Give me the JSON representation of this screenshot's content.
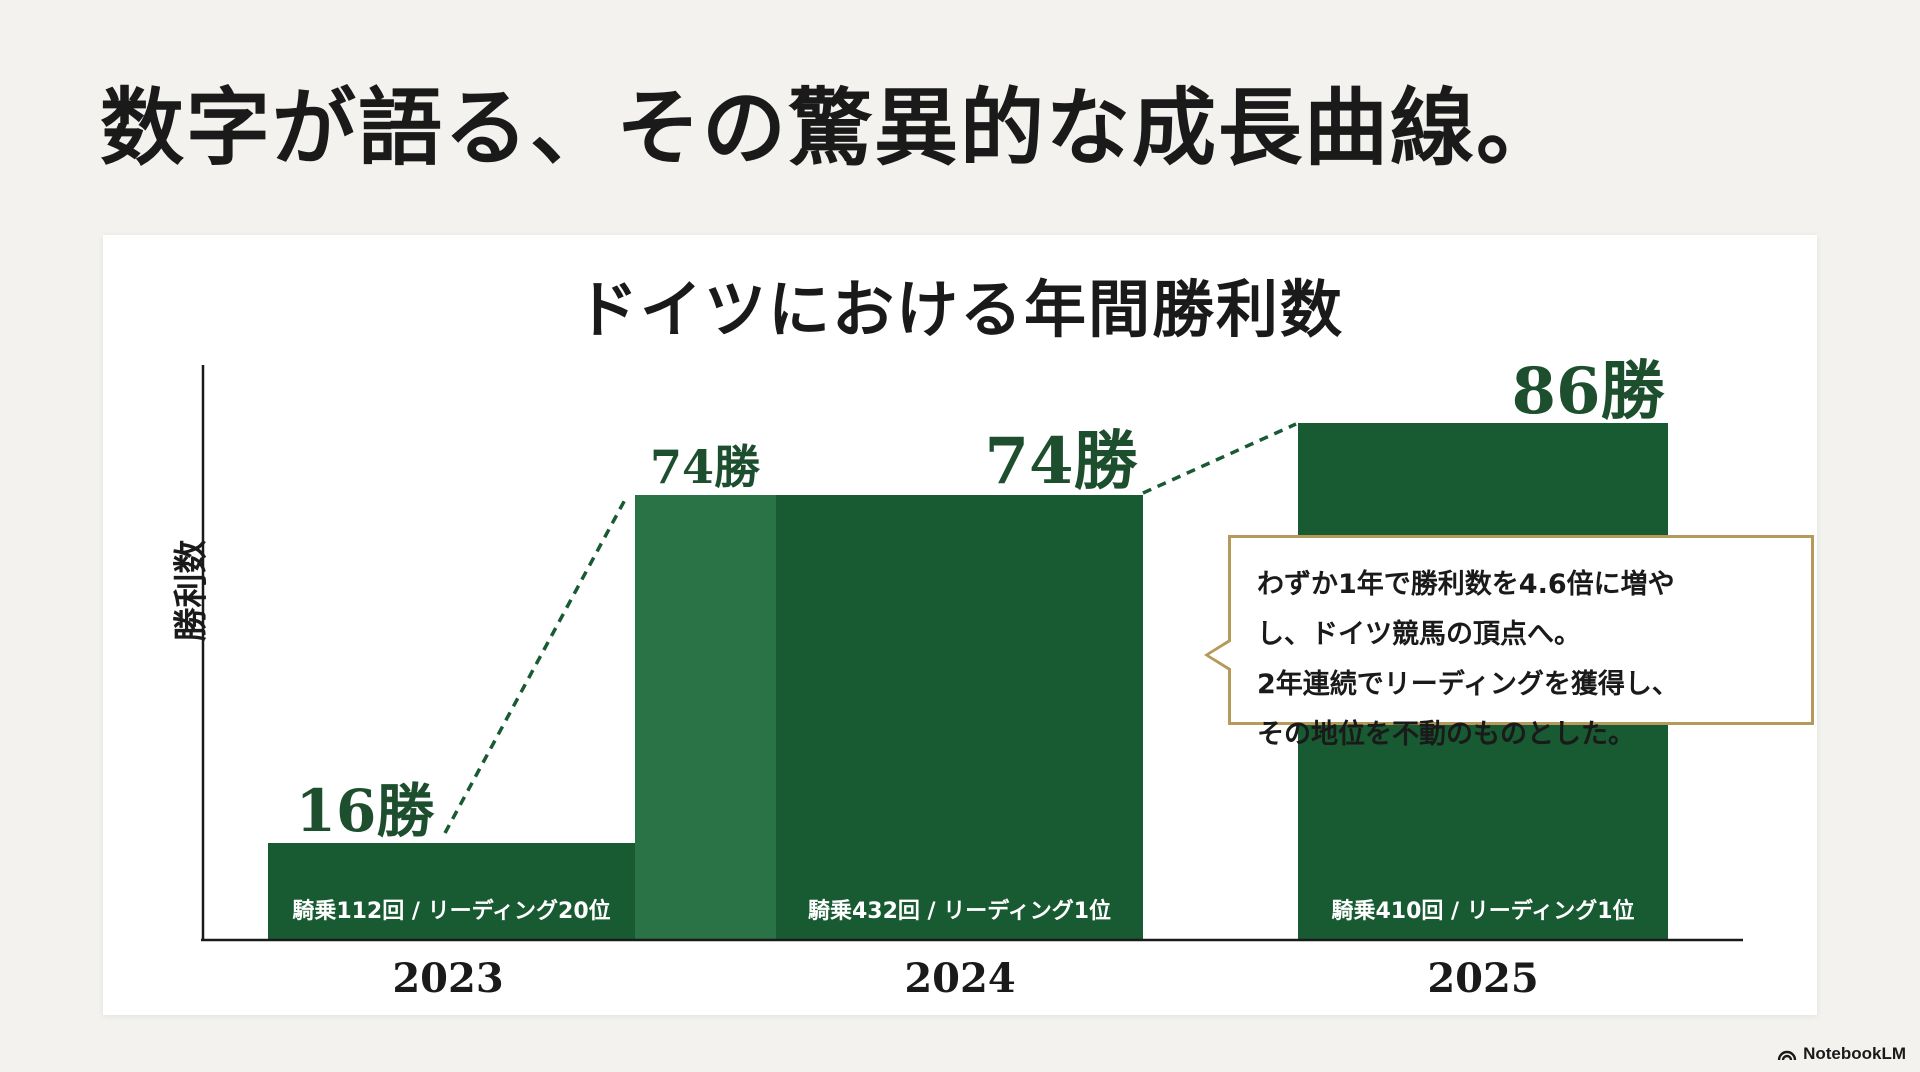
{
  "page": {
    "title": "数字が語る、その驚異的な成長曲線。",
    "brand": "NotebookLM"
  },
  "colors": {
    "bar_dark": "#185a32",
    "bar_light": "#2a7347",
    "value_label": "#1d4f2f",
    "callout_border": "#b59a5a",
    "axis": "#1a1a1a"
  },
  "callout": {
    "line1": "わずか1年で勝利数を4.6倍に増や",
    "line2": "し、ドイツ競馬の頂点へ。",
    "line3": "2年連続でリーディングを獲得し、",
    "line4": "その地位を不動のものとした。"
  },
  "chart_data": {
    "type": "bar",
    "title": "ドイツにおける年間勝利数",
    "ylabel": "勝利数",
    "xlabel": "",
    "categories": [
      "2023",
      "2024",
      "2025"
    ],
    "values": [
      16,
      74,
      86
    ],
    "value_labels": [
      "16勝",
      "74勝",
      "86勝"
    ],
    "bar_notes": [
      "騎乗112回 / リーディング20位",
      "騎乗432回 / リーディング1位",
      "騎乗410回 / リーディング1位"
    ],
    "transition": {
      "value": 74,
      "label": "74勝"
    },
    "ylim": [
      0,
      100
    ],
    "grid": false,
    "legend": "none",
    "connectors": "dashed"
  }
}
